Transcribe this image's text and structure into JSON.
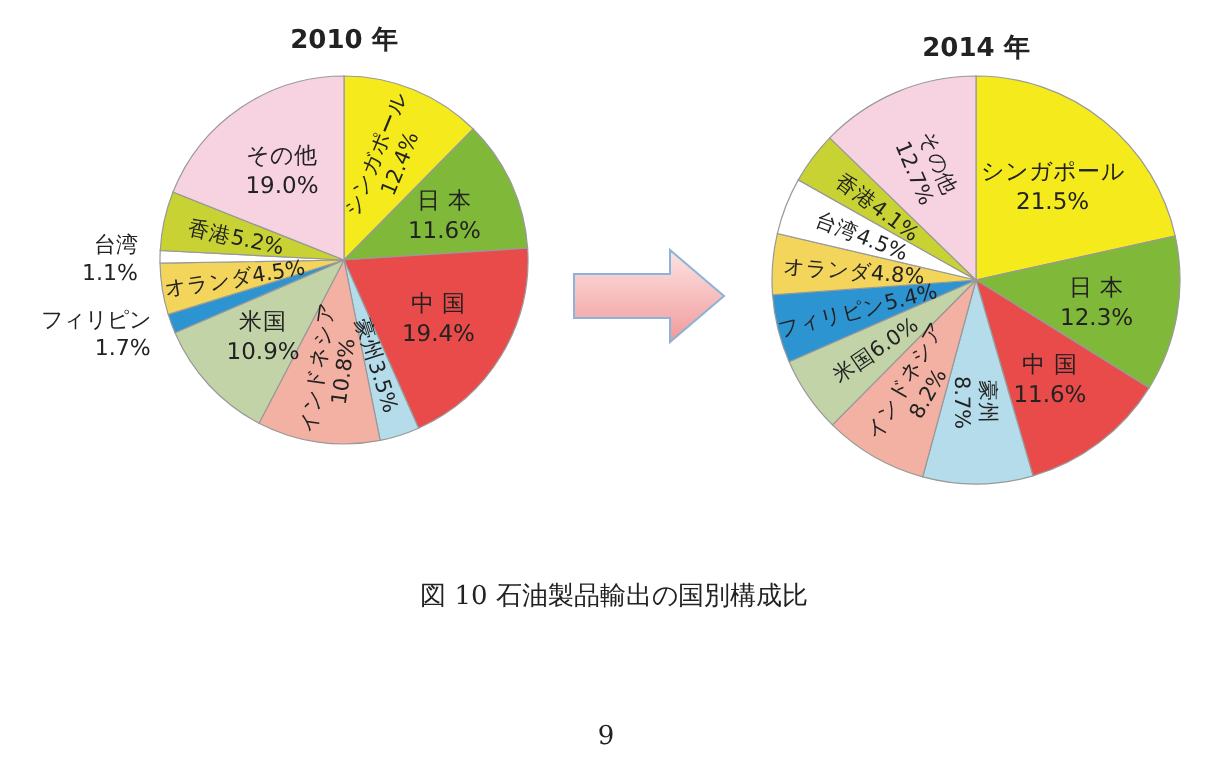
{
  "chart_data": [
    {
      "type": "pie",
      "title": "2010 年",
      "categories": [
        "シンガポール",
        "日 本",
        "中 国",
        "豪州",
        "インドネシア",
        "米国",
        "フィリピン",
        "オランダ",
        "台湾",
        "香港",
        "その他"
      ],
      "values": [
        12.4,
        11.6,
        19.4,
        3.5,
        10.8,
        10.9,
        1.7,
        4.5,
        1.1,
        5.2,
        19.0
      ],
      "value_labels": [
        "12.4%",
        "11.6%",
        "19.4%",
        "3.5%",
        "10.8%",
        "10.9%",
        "1.7%",
        "4.5%",
        "1.1%",
        "5.2%",
        "19.0%"
      ],
      "colors": [
        "#f5ea1c",
        "#80b93a",
        "#e84b4a",
        "#b5dcea",
        "#f2b1a2",
        "#c3d3a8",
        "#2d94d2",
        "#f2d55a",
        "#ffffff",
        "#c8d233",
        "#f7d3e1"
      ],
      "annotations": [
        "図 10  石油製品輸出の国別構成比",
        "9"
      ]
    },
    {
      "type": "pie",
      "title": "2014 年",
      "categories": [
        "シンガポール",
        "日 本",
        "中 国",
        "豪州",
        "インドネシア",
        "米国",
        "フィリピン",
        "オランダ",
        "台湾",
        "香港",
        "その他"
      ],
      "values": [
        21.5,
        12.3,
        11.6,
        8.7,
        8.2,
        6.0,
        5.4,
        4.8,
        4.5,
        4.1,
        12.7
      ],
      "value_labels": [
        "21.5%",
        "12.3%",
        "11.6%",
        "8.7%",
        "8.2%",
        "6.0%",
        "5.4%",
        "4.8%",
        "4.5%",
        "4.1%",
        "12.7%"
      ],
      "colors": [
        "#f5ea1c",
        "#80b93a",
        "#e84b4a",
        "#b5dcea",
        "#f2b1a2",
        "#c3d3a8",
        "#2d94d2",
        "#f2d55a",
        "#ffffff",
        "#c8d233",
        "#f7d3e1"
      ]
    }
  ]
}
